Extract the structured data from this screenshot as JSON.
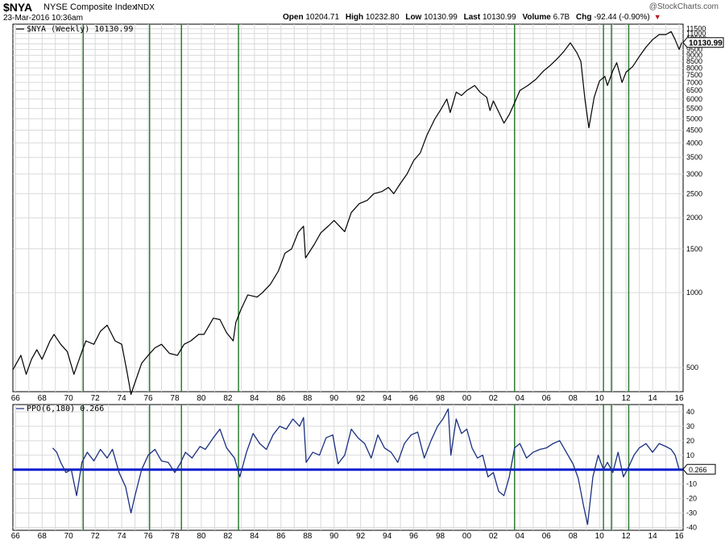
{
  "header": {
    "symbol": "$NYA",
    "name": "NYSE Composite Index",
    "exchange": "INDX",
    "datetime": "23-Mar-2016 10:36am",
    "brand": "@StockCharts.com",
    "quote": {
      "open_label": "Open",
      "open": "10204.71",
      "high_label": "High",
      "high": "10232.80",
      "low_label": "Low",
      "low": "10130.99",
      "last_label": "Last",
      "last": "10130.99",
      "volume_label": "Volume",
      "volume": "6.7B",
      "chg_label": "Chg",
      "chg": "-92.44 (-0.90%)",
      "chg_icon": "down-triangle-icon"
    }
  },
  "colors": {
    "price_line": "#000000",
    "ppo_line": "#1a2f80",
    "zero_line": "#0b1fcf",
    "signal_lines": "#2e7d32",
    "grid": "#d9d9d9"
  },
  "chart_data": [
    {
      "type": "line",
      "legend": "$NYA (Weekly) 10130.99",
      "last_value_label": "10130.99",
      "y_scale": "log",
      "ylim": [
        400,
        12000
      ],
      "y_ticks": [
        500,
        1000,
        1500,
        2000,
        2500,
        3000,
        3500,
        4000,
        4500,
        5000,
        5500,
        6000,
        6500,
        7000,
        7500,
        8000,
        8500,
        9000,
        9500,
        10000,
        10500,
        11000,
        11500
      ],
      "xlim": [
        1965.8,
        2016.3
      ],
      "x_tick_labels": [
        "66",
        "68",
        "70",
        "72",
        "74",
        "76",
        "78",
        "80",
        "82",
        "84",
        "86",
        "88",
        "90",
        "92",
        "94",
        "96",
        "98",
        "00",
        "02",
        "04",
        "06",
        "08",
        "10",
        "12",
        "14",
        "16"
      ],
      "x_tick_years": [
        1966,
        1968,
        1970,
        1972,
        1974,
        1976,
        1978,
        1980,
        1982,
        1984,
        1986,
        1988,
        1990,
        1992,
        1994,
        1996,
        1998,
        2000,
        2002,
        2004,
        2006,
        2008,
        2010,
        2012,
        2014,
        2016
      ],
      "signal_dates": [
        1971.1,
        1976.1,
        1978.5,
        1982.8,
        2003.6,
        2010.3,
        2010.9,
        2012.2
      ],
      "series": [
        {
          "x": [
            1965.8,
            1966.4,
            1966.8,
            1967.2,
            1967.6,
            1968.0,
            1968.6,
            1968.9,
            1969.4,
            1969.9,
            1970.4,
            1970.9,
            1971.3,
            1971.9,
            1972.4,
            1972.9,
            1973.5,
            1974.0,
            1974.4,
            1974.7,
            1974.9,
            1975.5,
            1976.0,
            1976.5,
            1977.0,
            1977.6,
            1978.2,
            1978.7,
            1979.2,
            1979.8,
            1980.2,
            1980.9,
            1981.4,
            1981.9,
            1982.4,
            1982.6,
            1983.0,
            1983.5,
            1984.2,
            1984.6,
            1985.2,
            1985.8,
            1986.3,
            1986.8,
            1987.3,
            1987.7,
            1987.85,
            1988.5,
            1989.0,
            1989.6,
            1990.0,
            1990.8,
            1991.3,
            1991.9,
            1992.5,
            1993.0,
            1993.6,
            1994.1,
            1994.5,
            1995.0,
            1995.5,
            1996.0,
            1996.5,
            1997.0,
            1997.6,
            1998.0,
            1998.5,
            1998.75,
            1999.2,
            1999.6,
            2000.0,
            2000.6,
            2001.0,
            2001.5,
            2001.75,
            2002.0,
            2002.5,
            2002.8,
            2003.2,
            2003.6,
            2004.0,
            2004.6,
            2005.2,
            2005.8,
            2006.3,
            2006.8,
            2007.3,
            2007.8,
            2008.3,
            2008.6,
            2008.9,
            2009.2,
            2009.6,
            2010.0,
            2010.4,
            2010.6,
            2011.0,
            2011.3,
            2011.7,
            2012.0,
            2012.5,
            2013.0,
            2013.5,
            2014.0,
            2014.5,
            2015.0,
            2015.4,
            2015.7,
            2016.0,
            2016.2
          ],
          "values": [
            490,
            560,
            470,
            540,
            590,
            540,
            640,
            680,
            620,
            580,
            470,
            560,
            640,
            620,
            700,
            740,
            640,
            620,
            480,
            390,
            420,
            520,
            560,
            600,
            620,
            570,
            560,
            620,
            640,
            680,
            680,
            790,
            780,
            690,
            640,
            760,
            860,
            980,
            960,
            1000,
            1080,
            1220,
            1440,
            1500,
            1750,
            1850,
            1380,
            1560,
            1740,
            1860,
            1950,
            1760,
            2100,
            2280,
            2350,
            2500,
            2550,
            2650,
            2500,
            2750,
            3000,
            3400,
            3650,
            4300,
            5000,
            5400,
            6000,
            5300,
            6400,
            6200,
            6500,
            6800,
            6400,
            6100,
            5400,
            5900,
            5200,
            4800,
            5200,
            5800,
            6500,
            6800,
            7200,
            7800,
            8200,
            8700,
            9300,
            10100,
            9200,
            8500,
            6000,
            4600,
            6100,
            7100,
            7400,
            6800,
            7800,
            8400,
            7000,
            7700,
            8100,
            8900,
            9700,
            10400,
            10900,
            10900,
            11200,
            10400,
            9500,
            10130.99
          ]
        }
      ]
    },
    {
      "type": "line",
      "legend": "PPO(6,180) 0.266",
      "last_value_label": "0.266",
      "ylim": [
        -42,
        45
      ],
      "y_ticks": [
        -40,
        -30,
        -20,
        -10,
        0,
        10,
        20,
        30,
        40
      ],
      "y_tick_labels": [
        "-40",
        "-30",
        "-20",
        "-10",
        "",
        "10",
        "20",
        "30",
        "40"
      ],
      "x_tick_labels": [
        "66",
        "68",
        "70",
        "72",
        "74",
        "76",
        "78",
        "80",
        "82",
        "84",
        "86",
        "88",
        "90",
        "92",
        "94",
        "96",
        "98",
        "00",
        "02",
        "04",
        "06",
        "08",
        "10",
        "12",
        "14",
        "16"
      ],
      "series": [
        {
          "x": [
            1968.8,
            1969.1,
            1969.4,
            1969.8,
            1970.2,
            1970.6,
            1971.0,
            1971.4,
            1971.9,
            1972.4,
            1972.9,
            1973.3,
            1973.8,
            1974.3,
            1974.7,
            1975.0,
            1975.5,
            1976.0,
            1976.5,
            1977.0,
            1977.5,
            1978.0,
            1978.4,
            1978.8,
            1979.3,
            1979.9,
            1980.3,
            1980.9,
            1981.4,
            1981.9,
            1982.5,
            1982.9,
            1983.4,
            1983.9,
            1984.4,
            1984.9,
            1985.4,
            1985.9,
            1986.4,
            1986.9,
            1987.4,
            1987.7,
            1987.9,
            1988.4,
            1988.9,
            1989.4,
            1989.9,
            1990.3,
            1990.8,
            1991.3,
            1991.8,
            1992.3,
            1992.8,
            1993.3,
            1993.8,
            1994.3,
            1994.8,
            1995.3,
            1995.8,
            1996.3,
            1996.8,
            1997.3,
            1997.8,
            1998.2,
            1998.6,
            1998.8,
            1999.2,
            1999.6,
            2000.0,
            2000.4,
            2000.8,
            2001.2,
            2001.6,
            2002.0,
            2002.4,
            2002.8,
            2003.2,
            2003.6,
            2004.0,
            2004.5,
            2005.0,
            2005.5,
            2006.0,
            2006.5,
            2007.0,
            2007.5,
            2008.0,
            2008.4,
            2008.8,
            2009.1,
            2009.5,
            2009.9,
            2010.3,
            2010.6,
            2011.0,
            2011.4,
            2011.8,
            2012.2,
            2012.6,
            2013.0,
            2013.5,
            2014.0,
            2014.5,
            2015.0,
            2015.4,
            2015.7,
            2016.0,
            2016.2
          ],
          "values": [
            15,
            12,
            5,
            -2,
            0,
            -18,
            5,
            12,
            6,
            14,
            8,
            14,
            -2,
            -12,
            -30,
            -18,
            0,
            10,
            14,
            6,
            5,
            -2,
            4,
            12,
            8,
            16,
            14,
            22,
            28,
            15,
            8,
            -5,
            12,
            25,
            18,
            14,
            24,
            30,
            28,
            35,
            30,
            36,
            5,
            12,
            10,
            22,
            24,
            4,
            10,
            28,
            22,
            18,
            8,
            24,
            15,
            12,
            5,
            18,
            24,
            26,
            8,
            20,
            30,
            35,
            42,
            10,
            35,
            25,
            28,
            15,
            8,
            10,
            -5,
            -2,
            -15,
            -18,
            -5,
            15,
            18,
            8,
            12,
            14,
            15,
            18,
            20,
            12,
            4,
            -6,
            -25,
            -38,
            -5,
            10,
            0,
            5,
            -2,
            12,
            -5,
            2,
            10,
            15,
            18,
            12,
            18,
            16,
            14,
            10,
            0,
            0.266
          ]
        }
      ]
    }
  ]
}
